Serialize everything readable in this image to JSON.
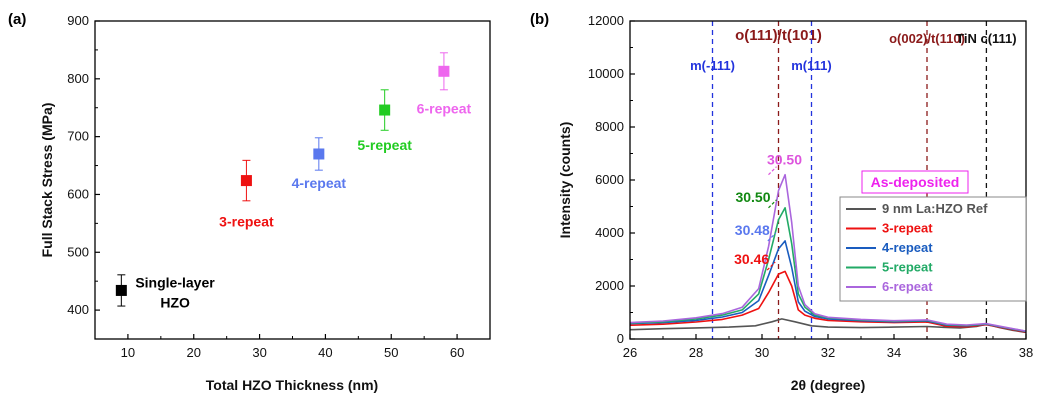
{
  "chart_data": [
    {
      "panel": "(a)",
      "type": "scatter",
      "xlabel": "Total HZO Thickness (nm)",
      "ylabel": "Full Stack Stress (MPa)",
      "xlim": [
        5,
        65
      ],
      "ylim": [
        350,
        900
      ],
      "xticks": [
        10,
        20,
        30,
        40,
        50,
        60
      ],
      "yticks": [
        400,
        500,
        600,
        700,
        800,
        900
      ],
      "points": [
        {
          "label_lines": [
            "Single-layer",
            "HZO"
          ],
          "x": 9,
          "y": 434,
          "err": 27,
          "color": "#000000"
        },
        {
          "label_lines": [
            "3-repeat"
          ],
          "x": 28,
          "y": 624,
          "err": 35,
          "color": "#ee1111"
        },
        {
          "label_lines": [
            "4-repeat"
          ],
          "x": 39,
          "y": 670,
          "err": 28,
          "color": "#5a78ee"
        },
        {
          "label_lines": [
            "5-repeat"
          ],
          "x": 49,
          "y": 746,
          "err": 35,
          "color": "#22cc22"
        },
        {
          "label_lines": [
            "6-repeat"
          ],
          "x": 58,
          "y": 813,
          "err": 32,
          "color": "#ee66ee"
        }
      ]
    },
    {
      "panel": "(b)",
      "type": "line",
      "xlabel": "2θ (degree)",
      "ylabel": "Intensity (counts)",
      "xlim": [
        26,
        38
      ],
      "ylim": [
        0,
        12000
      ],
      "xticks": [
        26,
        28,
        30,
        32,
        34,
        36,
        38
      ],
      "yticks": [
        0,
        2000,
        4000,
        6000,
        8000,
        10000,
        12000
      ],
      "legend_title": "As-deposited",
      "legend_title_color": "#ee22ee",
      "ref_lines": [
        {
          "label": "m(-111)",
          "x": 28.5,
          "color": "#2233dd"
        },
        {
          "label": "o(111)/t(101)",
          "x": 30.5,
          "color": "#8b1a1a"
        },
        {
          "label": "m(111)",
          "x": 31.5,
          "color": "#2233dd"
        },
        {
          "label": "o(002)/t(110)",
          "x": 35.0,
          "color": "#8b1a1a"
        },
        {
          "label": "TiN c(111)",
          "x": 36.8,
          "color": "#111111"
        }
      ],
      "peak_labels": [
        {
          "text": "30.46",
          "x": 30.46,
          "y": 2600,
          "color": "#ee1111"
        },
        {
          "text": "30.48",
          "x": 30.48,
          "y": 3700,
          "color": "#5a78ee"
        },
        {
          "text": "30.50",
          "x": 30.5,
          "y": 4950,
          "color": "#118811"
        },
        {
          "text": "30.50",
          "x": 30.5,
          "y": 6200,
          "color": "#dd55dd"
        }
      ],
      "series": [
        {
          "name": "9 nm La:HZO Ref",
          "color": "#555555",
          "x": [
            26,
            27,
            28,
            29,
            29.8,
            30.3,
            30.6,
            31,
            31.5,
            32,
            33,
            34,
            35,
            35.5,
            36,
            36.5,
            36.8,
            37.2,
            37.6,
            38
          ],
          "y": [
            350,
            390,
            420,
            450,
            500,
            650,
            760,
            650,
            500,
            450,
            430,
            450,
            470,
            440,
            420,
            470,
            560,
            430,
            330,
            250
          ]
        },
        {
          "name": "3-repeat",
          "color": "#ee1111",
          "x": [
            26,
            27,
            28,
            28.8,
            29.4,
            29.9,
            30.2,
            30.5,
            30.7,
            30.9,
            31.1,
            31.3,
            31.6,
            32,
            33,
            34,
            35,
            35.6,
            36.2,
            36.8,
            37.3,
            38
          ],
          "y": [
            520,
            560,
            640,
            740,
            900,
            1150,
            1750,
            2450,
            2550,
            2000,
            1100,
            900,
            780,
            700,
            650,
            620,
            640,
            480,
            460,
            540,
            420,
            260
          ]
        },
        {
          "name": "4-repeat",
          "color": "#1a5cbf",
          "x": [
            26,
            27,
            28,
            28.8,
            29.4,
            29.9,
            30.2,
            30.5,
            30.7,
            30.9,
            31.1,
            31.3,
            31.6,
            32,
            33,
            34,
            35,
            35.6,
            36.2,
            36.8,
            37.3,
            38
          ],
          "y": [
            580,
            620,
            700,
            830,
            1000,
            1450,
            2400,
            3400,
            3700,
            2700,
            1400,
            1050,
            850,
            760,
            690,
            650,
            680,
            520,
            500,
            560,
            440,
            280
          ]
        },
        {
          "name": "5-repeat",
          "color": "#22aa66",
          "x": [
            26,
            27,
            28,
            28.8,
            29.4,
            29.9,
            30.2,
            30.5,
            30.7,
            30.9,
            31.1,
            31.3,
            31.6,
            32,
            33,
            34,
            35,
            35.6,
            36.2,
            36.8,
            37.3,
            38
          ],
          "y": [
            600,
            650,
            760,
            900,
            1100,
            1700,
            3000,
            4500,
            4950,
            3600,
            1700,
            1200,
            900,
            800,
            720,
            670,
            700,
            540,
            510,
            570,
            450,
            290
          ]
        },
        {
          "name": "6-repeat",
          "color": "#aa66dd",
          "x": [
            26,
            27,
            28,
            28.8,
            29.4,
            29.9,
            30.2,
            30.5,
            30.7,
            30.9,
            31.1,
            31.3,
            31.6,
            32,
            33,
            34,
            35,
            35.6,
            36.2,
            36.8,
            37.3,
            38
          ],
          "y": [
            620,
            680,
            800,
            960,
            1200,
            1900,
            3500,
            5600,
            6200,
            4400,
            2000,
            1300,
            950,
            820,
            740,
            690,
            720,
            560,
            530,
            580,
            460,
            300
          ]
        }
      ]
    }
  ]
}
